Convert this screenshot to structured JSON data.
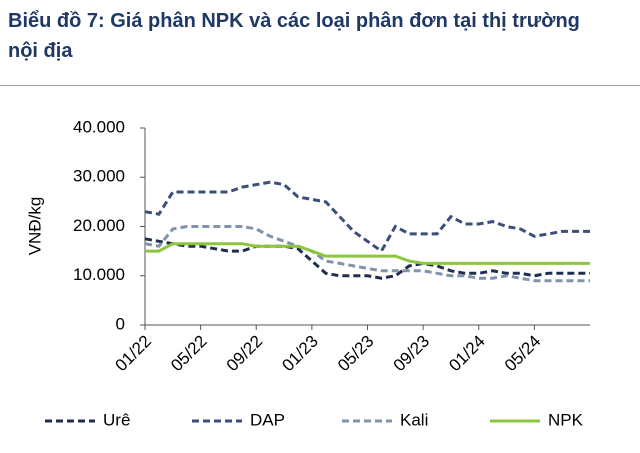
{
  "chart_data": {
    "type": "line",
    "title": "Biểu đồ 7: Giá phân NPK và các loại phân đơn tại thị trường nội địa",
    "y_label": "VNĐ/kg",
    "categories": [
      "01/22",
      null,
      null,
      null,
      "05/22",
      null,
      null,
      null,
      "09/22",
      null,
      null,
      null,
      "01/23",
      null,
      null,
      null,
      "05/23",
      null,
      null,
      null,
      "09/23",
      null,
      null,
      null,
      "01/24",
      null,
      null,
      null,
      "05/24",
      null,
      null,
      null,
      null
    ],
    "ylim": [
      0,
      40000
    ],
    "yticks": [
      0,
      {
        "value": 10000,
        "label": "10.000"
      },
      {
        "value": 20000,
        "label": "20.000"
      },
      {
        "value": 30000,
        "label": "30.000"
      },
      {
        "value": 40000,
        "label": "40.000"
      }
    ],
    "grid": false,
    "legend": "bottom",
    "series": [
      {
        "name": "Urê",
        "color": "#1f2d50",
        "style": "dashed",
        "values": [
          17500,
          17000,
          16500,
          16000,
          16000,
          15500,
          15000,
          15000,
          16000,
          16000,
          16000,
          15500,
          13000,
          10500,
          10000,
          10000,
          10000,
          9500,
          10000,
          12000,
          12500,
          12000,
          11000,
          10500,
          10500,
          11000,
          10500,
          10500,
          10000,
          10500,
          10500,
          10500,
          10500
        ]
      },
      {
        "name": "DAP",
        "color": "#3a4f7a",
        "style": "dashed",
        "values": [
          23000,
          22500,
          27000,
          27000,
          27000,
          27000,
          27000,
          28000,
          28500,
          29000,
          28500,
          26000,
          25500,
          25000,
          22000,
          19000,
          17000,
          15000,
          20000,
          18500,
          18500,
          18500,
          22000,
          20500,
          20500,
          21000,
          20000,
          19500,
          18000,
          18500,
          19000,
          19000,
          19000
        ]
      },
      {
        "name": "Kali",
        "color": "#7f93ad",
        "style": "dashed",
        "values": [
          16500,
          16000,
          19500,
          20000,
          20000,
          20000,
          20000,
          20000,
          19500,
          18000,
          17000,
          16000,
          15000,
          13000,
          12500,
          12000,
          11500,
          11000,
          11000,
          11000,
          11000,
          10500,
          10000,
          10000,
          9500,
          9500,
          10000,
          9500,
          9000,
          9000,
          9000,
          9000,
          9000
        ]
      },
      {
        "name": "NPK",
        "color": "#8cc63f",
        "style": "solid",
        "values": [
          15000,
          15000,
          16500,
          16500,
          16500,
          16500,
          16500,
          16500,
          16000,
          16000,
          16000,
          16000,
          15000,
          14000,
          14000,
          14000,
          14000,
          14000,
          14000,
          13000,
          12500,
          12500,
          12500,
          12500,
          12500,
          12500,
          12500,
          12500,
          12500,
          12500,
          12500,
          12500,
          12500
        ]
      }
    ]
  }
}
